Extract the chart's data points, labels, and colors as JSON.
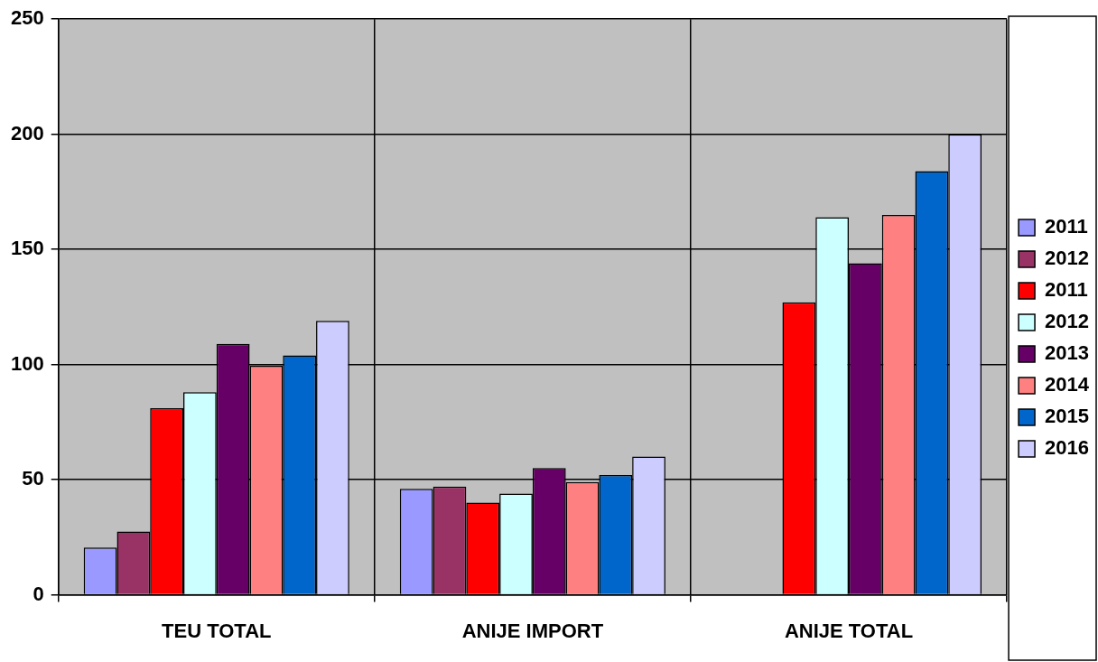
{
  "chart_data": {
    "type": "bar",
    "categories": [
      "TEU TOTAL",
      "ANIJE IMPORT",
      "ANIJE TOTAL"
    ],
    "series": [
      {
        "name": "2011",
        "color": "#9999ff",
        "values": [
          20.5,
          46,
          null
        ]
      },
      {
        "name": "2012",
        "color": "#993366",
        "values": [
          27.5,
          47,
          null
        ]
      },
      {
        "name": "2011",
        "color": "#ff0000",
        "values": [
          81,
          40,
          127
        ]
      },
      {
        "name": "2012",
        "color": "#ccffff",
        "values": [
          88,
          44,
          164
        ]
      },
      {
        "name": "2013",
        "color": "#660066",
        "values": [
          109,
          55,
          144
        ]
      },
      {
        "name": "2014",
        "color": "#ff8080",
        "values": [
          99.5,
          49,
          165
        ]
      },
      {
        "name": "2015",
        "color": "#0066cc",
        "values": [
          104,
          52,
          184
        ]
      },
      {
        "name": "2016",
        "color": "#ccccff",
        "values": [
          119,
          60,
          200
        ]
      }
    ],
    "ylim": [
      0,
      250
    ],
    "yticks": [
      0,
      50,
      100,
      150,
      200,
      250
    ],
    "grid": true,
    "legend": "right"
  }
}
